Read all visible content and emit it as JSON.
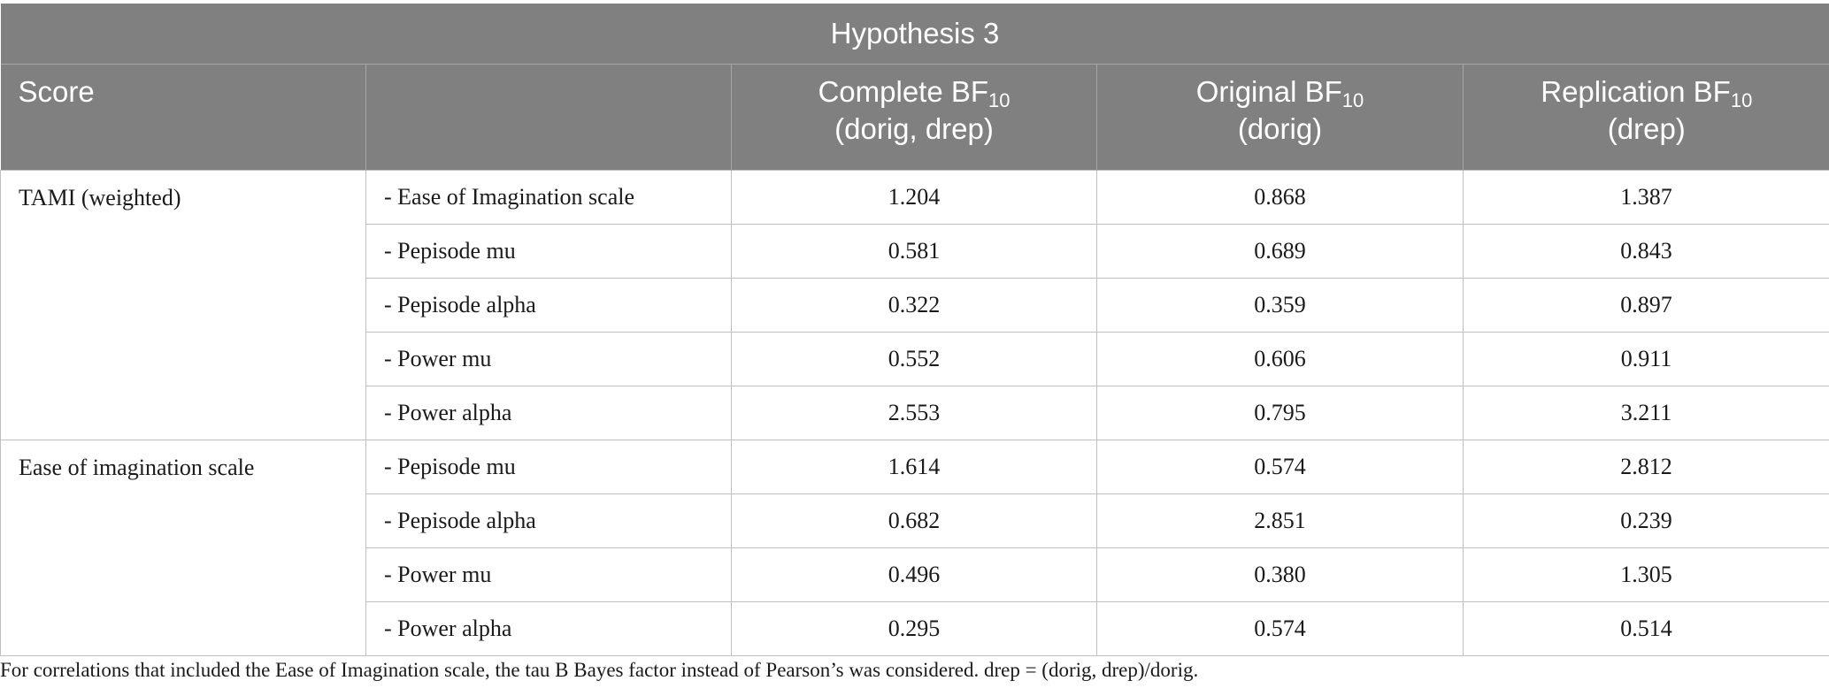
{
  "table": {
    "title": "Hypothesis 3",
    "headers": {
      "score": "Score",
      "blank": "",
      "complete": {
        "main": "Complete BF",
        "sub": "10",
        "line2": "(dorig, drep)"
      },
      "original": {
        "main": "Original BF",
        "sub": "10",
        "line2": "(dorig)"
      },
      "replication": {
        "main": "Replication BF",
        "sub": "10",
        "line2": "(drep)"
      }
    },
    "groups": [
      {
        "score": "TAMI (weighted)",
        "rows": [
          {
            "measure": "- Ease of Imagination scale",
            "complete": "1.204",
            "original": "0.868",
            "replication": "1.387"
          },
          {
            "measure": "- Pepisode mu",
            "complete": "0.581",
            "original": "0.689",
            "replication": "0.843"
          },
          {
            "measure": "- Pepisode alpha",
            "complete": "0.322",
            "original": "0.359",
            "replication": "0.897"
          },
          {
            "measure": "- Power mu",
            "complete": "0.552",
            "original": "0.606",
            "replication": "0.911"
          },
          {
            "measure": "- Power alpha",
            "complete": "2.553",
            "original": "0.795",
            "replication": "3.211"
          }
        ]
      },
      {
        "score": "Ease of imagination scale",
        "rows": [
          {
            "measure": "- Pepisode mu",
            "complete": "1.614",
            "original": "0.574",
            "replication": "2.812"
          },
          {
            "measure": "- Pepisode alpha",
            "complete": "0.682",
            "original": "2.851",
            "replication": "0.239"
          },
          {
            "measure": "- Power mu",
            "complete": "0.496",
            "original": "0.380",
            "replication": "1.305"
          },
          {
            "measure": "- Power alpha",
            "complete": "0.295",
            "original": "0.574",
            "replication": "0.514"
          }
        ]
      }
    ]
  },
  "footnote": "For correlations that included the Ease of Imagination scale, the tau B Bayes factor instead of Pearson’s was considered. drep = (dorig, drep)/dorig."
}
